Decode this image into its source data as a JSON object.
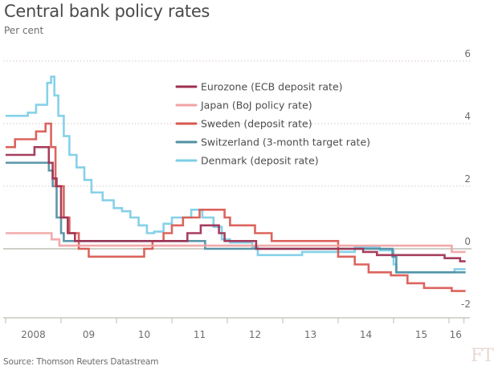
{
  "header": {
    "title": "Central bank policy rates",
    "subtitle": "Per cent"
  },
  "footer": {
    "source": "Source: Thomson Reuters Datastream",
    "logo": "FT"
  },
  "chart_data": {
    "type": "line",
    "title": "Central bank policy rates",
    "subtitle": "Per cent",
    "xlabel": "",
    "ylabel": "Per cent",
    "xlim": [
      2008.0,
      2016.35
    ],
    "ylim": [
      -2.0,
      6.0
    ],
    "y_ticks": [
      6,
      4,
      2,
      0,
      -2
    ],
    "x_ticks": [
      {
        "value": 2008.5,
        "label": "2008"
      },
      {
        "value": 2009.5,
        "label": "09"
      },
      {
        "value": 2010.5,
        "label": "10"
      },
      {
        "value": 2011.5,
        "label": "11"
      },
      {
        "value": 2012.5,
        "label": "12"
      },
      {
        "value": 2013.5,
        "label": "13"
      },
      {
        "value": 2014.5,
        "label": "14"
      },
      {
        "value": 2015.5,
        "label": "15"
      },
      {
        "value": 2016.12,
        "label": "16"
      }
    ],
    "x_tick_marks": [
      2008.0,
      2009.0,
      2010.0,
      2011.0,
      2012.0,
      2013.0,
      2014.0,
      2015.0,
      2016.0,
      2016.27
    ],
    "grid": "horizontal dotted",
    "legend_position": "top-center",
    "series": [
      {
        "name": "Eurozone (ECB deposit rate)",
        "color": "#9e2f50",
        "step": true,
        "points": [
          [
            2008.0,
            3.0
          ],
          [
            2008.52,
            3.25
          ],
          [
            2008.78,
            2.75
          ],
          [
            2008.85,
            2.25
          ],
          [
            2008.92,
            2.0
          ],
          [
            2009.0,
            1.0
          ],
          [
            2009.12,
            0.5
          ],
          [
            2009.25,
            0.25
          ],
          [
            2011.28,
            0.5
          ],
          [
            2011.52,
            0.75
          ],
          [
            2011.85,
            0.5
          ],
          [
            2011.95,
            0.25
          ],
          [
            2012.52,
            0.0
          ],
          [
            2014.45,
            -0.1
          ],
          [
            2014.7,
            -0.2
          ],
          [
            2015.92,
            -0.3
          ],
          [
            2016.2,
            -0.4
          ],
          [
            2016.3,
            -0.4
          ]
        ]
      },
      {
        "name": "Japan (BoJ policy rate)",
        "color": "#f2a3a3",
        "step": true,
        "points": [
          [
            2008.0,
            0.5
          ],
          [
            2008.83,
            0.3
          ],
          [
            2008.97,
            0.1
          ],
          [
            2016.05,
            -0.1
          ],
          [
            2016.3,
            -0.1
          ]
        ]
      },
      {
        "name": "Sweden (deposit rate)",
        "color": "#d9574f",
        "step": true,
        "points": [
          [
            2008.0,
            3.25
          ],
          [
            2008.17,
            3.5
          ],
          [
            2008.55,
            3.75
          ],
          [
            2008.72,
            4.0
          ],
          [
            2008.82,
            3.25
          ],
          [
            2008.9,
            2.0
          ],
          [
            2009.05,
            1.0
          ],
          [
            2009.15,
            0.5
          ],
          [
            2009.32,
            0.0
          ],
          [
            2009.5,
            -0.25
          ],
          [
            2010.5,
            0.0
          ],
          [
            2010.65,
            0.25
          ],
          [
            2010.85,
            0.5
          ],
          [
            2011.0,
            0.75
          ],
          [
            2011.2,
            1.0
          ],
          [
            2011.5,
            1.25
          ],
          [
            2011.95,
            1.0
          ],
          [
            2012.05,
            0.75
          ],
          [
            2012.5,
            0.5
          ],
          [
            2012.8,
            0.25
          ],
          [
            2014.0,
            -0.25
          ],
          [
            2014.3,
            -0.5
          ],
          [
            2014.55,
            -0.75
          ],
          [
            2014.95,
            -0.85
          ],
          [
            2015.25,
            -1.1
          ],
          [
            2015.55,
            -1.25
          ],
          [
            2016.05,
            -1.35
          ],
          [
            2016.3,
            -1.35
          ]
        ]
      },
      {
        "name": "Switzerland (3-month target rate)",
        "color": "#4f8fa3",
        "step": true,
        "points": [
          [
            2008.0,
            2.75
          ],
          [
            2008.78,
            2.5
          ],
          [
            2008.85,
            2.0
          ],
          [
            2008.92,
            1.0
          ],
          [
            2009.0,
            0.5
          ],
          [
            2009.05,
            0.25
          ],
          [
            2011.6,
            0.0
          ],
          [
            2014.98,
            -0.25
          ],
          [
            2015.05,
            -0.75
          ],
          [
            2016.3,
            -0.75
          ]
        ]
      },
      {
        "name": "Denmark (deposit rate)",
        "color": "#7ccde6",
        "step": true,
        "points": [
          [
            2008.0,
            4.25
          ],
          [
            2008.4,
            4.35
          ],
          [
            2008.55,
            4.6
          ],
          [
            2008.75,
            5.3
          ],
          [
            2008.82,
            5.5
          ],
          [
            2008.88,
            4.9
          ],
          [
            2008.95,
            4.25
          ],
          [
            2009.05,
            3.6
          ],
          [
            2009.15,
            3.0
          ],
          [
            2009.28,
            2.6
          ],
          [
            2009.42,
            2.2
          ],
          [
            2009.55,
            1.8
          ],
          [
            2009.75,
            1.55
          ],
          [
            2009.95,
            1.3
          ],
          [
            2010.1,
            1.2
          ],
          [
            2010.25,
            1.0
          ],
          [
            2010.4,
            0.75
          ],
          [
            2010.55,
            0.5
          ],
          [
            2010.68,
            0.55
          ],
          [
            2010.85,
            0.8
          ],
          [
            2011.0,
            1.0
          ],
          [
            2011.35,
            1.25
          ],
          [
            2011.55,
            1.0
          ],
          [
            2011.75,
            0.7
          ],
          [
            2011.9,
            0.3
          ],
          [
            2012.05,
            0.2
          ],
          [
            2012.45,
            0.05
          ],
          [
            2012.55,
            -0.2
          ],
          [
            2013.35,
            -0.1
          ],
          [
            2014.3,
            0.05
          ],
          [
            2014.75,
            -0.05
          ],
          [
            2015.0,
            -0.5
          ],
          [
            2015.05,
            -0.75
          ],
          [
            2016.1,
            -0.65
          ],
          [
            2016.3,
            -0.65
          ]
        ]
      }
    ]
  }
}
